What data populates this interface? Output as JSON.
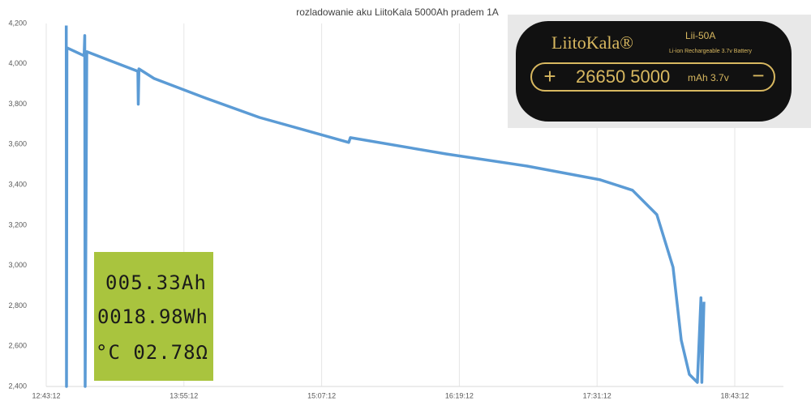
{
  "chart_data": {
    "type": "line",
    "title": "rozladowanie aku LiitoKala 5000Ah pradem 1A",
    "x": [
      "12:53:40",
      "12:53:45",
      "12:53:48",
      "12:54:00",
      "13:03:00",
      "13:03:20",
      "13:03:33",
      "13:04:24",
      "13:31:07",
      "13:31:20",
      "13:31:40",
      "13:39:36",
      "14:05:02",
      "14:34:43",
      "15:21:21",
      "15:22:12",
      "16:12:14",
      "16:54:38",
      "17:32:48",
      "17:49:45",
      "18:02:28",
      "18:10:57",
      "18:15:12",
      "18:19:26",
      "18:23:40",
      "18:25:30",
      "18:26:00",
      "18:27:04"
    ],
    "series": [
      {
        "color": "#5b9bd5",
        "values": [
          4190,
          3000,
          2400,
          4080,
          4040,
          4140,
          2400,
          4060,
          3963,
          3800,
          3975,
          3927,
          3835,
          3734,
          3610,
          3634,
          3553,
          3493,
          3425,
          3373,
          3252,
          2991,
          2630,
          2460,
          2420,
          2840,
          2420,
          2820
        ]
      }
    ],
    "xlim": [
      "12:43:12",
      "18:43:12"
    ],
    "xticks": [
      "12:43:12",
      "13:55:12",
      "15:07:12",
      "16:19:12",
      "17:31:12",
      "18:43:12"
    ],
    "ylim": [
      2400,
      4200
    ],
    "yticks": [
      {
        "value": 2400,
        "label": "2,400"
      },
      {
        "value": 2600,
        "label": "2,600"
      },
      {
        "value": 2800,
        "label": "2,800"
      },
      {
        "value": 3000,
        "label": "3,000"
      },
      {
        "value": 3200,
        "label": "3,200"
      },
      {
        "value": 3400,
        "label": "3,400"
      },
      {
        "value": 3600,
        "label": "3,600"
      },
      {
        "value": 3800,
        "label": "3,800"
      },
      {
        "value": 4000,
        "label": "4,000"
      },
      {
        "value": 4200,
        "label": "4,200"
      }
    ],
    "grid": "x"
  },
  "lcd_display": {
    "lines": [
      "005.33Ah",
      "0018.98Wh",
      "°C 02.78Ω"
    ]
  },
  "battery_label": {
    "brand": "LiitoKala®",
    "model": "Lii-50A",
    "type": "Li-ion Rechargeable 3.7v Battery",
    "size": "26650 5000",
    "rating": "mAh 3.7v"
  }
}
